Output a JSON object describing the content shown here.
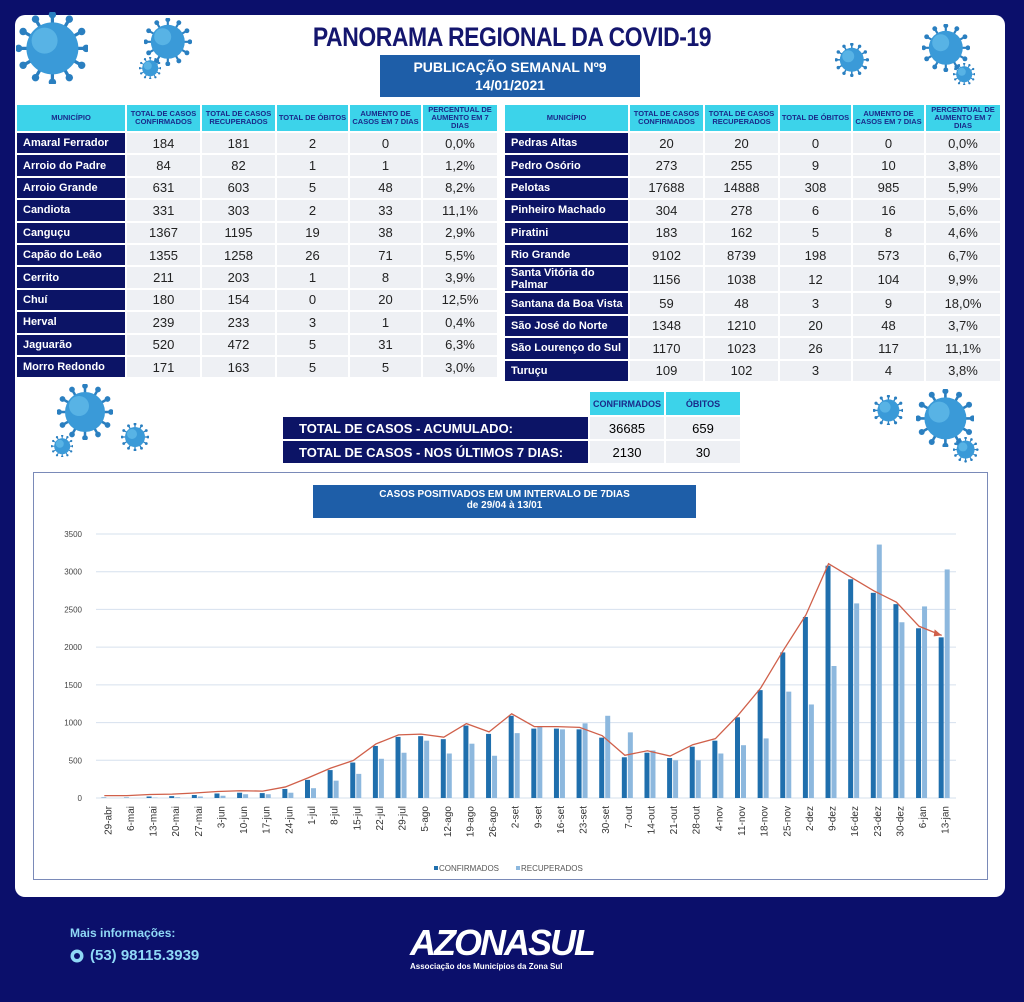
{
  "header": {
    "title": "PANORAMA REGIONAL DA COVID-19",
    "publication": "PUBLICAÇÃO SEMANAL Nº9",
    "date": "14/01/2021"
  },
  "columns": [
    "MUNICÍPIO",
    "TOTAL DE CASOS CONFIRMADOS",
    "TOTAL DE CASOS RECUPERADOS",
    "TOTAL DE ÓBITOS",
    "AUMENTO DE CASOS EM 7 DIAS",
    "PERCENTUAL DE AUMENTO EM 7 DIAS"
  ],
  "left_table": [
    [
      "Amaral Ferrador",
      "184",
      "181",
      "2",
      "0",
      "0,0%"
    ],
    [
      "Arroio do Padre",
      "84",
      "82",
      "1",
      "1",
      "1,2%"
    ],
    [
      "Arroio Grande",
      "631",
      "603",
      "5",
      "48",
      "8,2%"
    ],
    [
      "Candiota",
      "331",
      "303",
      "2",
      "33",
      "11,1%"
    ],
    [
      "Canguçu",
      "1367",
      "1195",
      "19",
      "38",
      "2,9%"
    ],
    [
      "Capão do Leão",
      "1355",
      "1258",
      "26",
      "71",
      "5,5%"
    ],
    [
      "Cerrito",
      "211",
      "203",
      "1",
      "8",
      "3,9%"
    ],
    [
      "Chuí",
      "180",
      "154",
      "0",
      "20",
      "12,5%"
    ],
    [
      "Herval",
      "239",
      "233",
      "3",
      "1",
      "0,4%"
    ],
    [
      "Jaguarão",
      "520",
      "472",
      "5",
      "31",
      "6,3%"
    ],
    [
      "Morro Redondo",
      "171",
      "163",
      "5",
      "5",
      "3,0%"
    ]
  ],
  "right_table": [
    [
      "Pedras Altas",
      "20",
      "20",
      "0",
      "0",
      "0,0%"
    ],
    [
      "Pedro Osório",
      "273",
      "255",
      "9",
      "10",
      "3,8%"
    ],
    [
      "Pelotas",
      "17688",
      "14888",
      "308",
      "985",
      "5,9%"
    ],
    [
      "Pinheiro Machado",
      "304",
      "278",
      "6",
      "16",
      "5,6%"
    ],
    [
      "Piratini",
      "183",
      "162",
      "5",
      "8",
      "4,6%"
    ],
    [
      "Rio Grande",
      "9102",
      "8739",
      "198",
      "573",
      "6,7%"
    ],
    [
      "Santa Vitória do Palmar",
      "1156",
      "1038",
      "12",
      "104",
      "9,9%"
    ],
    [
      "Santana da Boa Vista",
      "59",
      "48",
      "3",
      "9",
      "18,0%"
    ],
    [
      "São José do Norte",
      "1348",
      "1210",
      "20",
      "48",
      "3,7%"
    ],
    [
      "São Lourenço do Sul",
      "1170",
      "1023",
      "26",
      "117",
      "11,1%"
    ],
    [
      "Turuçu",
      "109",
      "102",
      "3",
      "4",
      "3,8%"
    ]
  ],
  "totals": {
    "col_confirmed": "CONFIRMADOS",
    "col_deaths": "ÓBITOS",
    "rows": [
      {
        "label": "TOTAL DE CASOS  - ACUMULADO:",
        "confirmed": "36685",
        "deaths": "659"
      },
      {
        "label": "TOTAL DE CASOS  - NOS ÚLTIMOS 7 DIAS:",
        "confirmed": "2130",
        "deaths": "30"
      }
    ]
  },
  "chart_data": {
    "type": "bar",
    "title": "CASOS POSITIVADOS EM UM INTERVALO DE 7DIAS",
    "subtitle": "de 29/04 à 13/01",
    "ylim": [
      0,
      3500
    ],
    "yticks": [
      0,
      500,
      1000,
      1500,
      2000,
      2500,
      3000,
      3500
    ],
    "legend": "bottom",
    "trendline": "CONFIRMADOS",
    "categories": [
      "29-abr",
      "6-mai",
      "13-mai",
      "20-mai",
      "27-mai",
      "3-jun",
      "10-jun",
      "17-jun",
      "24-jun",
      "1-jul",
      "8-jul",
      "15-jul",
      "22-jul",
      "29-jul",
      "5-ago",
      "12-ago",
      "19-ago",
      "26-ago",
      "2-set",
      "9-set",
      "16-set",
      "23-set",
      "30-set",
      "7-out",
      "14-out",
      "21-out",
      "28-out",
      "4-nov",
      "11-nov",
      "18-nov",
      "25-nov",
      "2-dez",
      "9-dez",
      "16-dez",
      "23-dez",
      "30-dez",
      "6-jan",
      "13-jan"
    ],
    "series": [
      {
        "name": "CONFIRMADOS",
        "color": "#1f6fad",
        "values": [
          5,
          5,
          20,
          25,
          40,
          60,
          70,
          65,
          120,
          240,
          370,
          470,
          690,
          810,
          820,
          780,
          960,
          850,
          1090,
          920,
          920,
          910,
          800,
          540,
          600,
          530,
          680,
          760,
          1070,
          1430,
          1930,
          2400,
          3080,
          2900,
          2720,
          2570,
          2250,
          2130
        ]
      },
      {
        "name": "RECUPERADOS",
        "color": "#8db8de",
        "values": [
          0,
          0,
          5,
          10,
          20,
          30,
          50,
          50,
          70,
          130,
          230,
          320,
          520,
          600,
          760,
          590,
          720,
          560,
          860,
          950,
          910,
          990,
          1090,
          870,
          630,
          500,
          500,
          590,
          700,
          790,
          1410,
          1240,
          1750,
          2580,
          3360,
          2330,
          2540,
          3030
        ]
      }
    ]
  },
  "footer": {
    "info_label": "Mais informações:",
    "phone": "(53) 98115.3939",
    "logo_text": "AZONASUL",
    "logo_sub": "Associação dos Municípios da Zona Sul"
  }
}
